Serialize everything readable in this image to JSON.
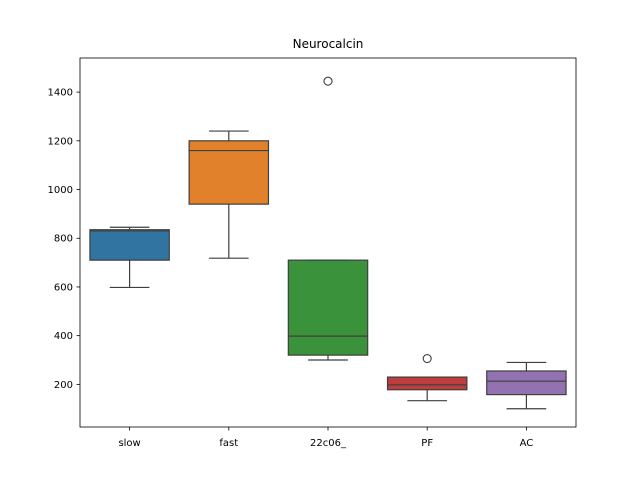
{
  "chart_data": {
    "type": "box",
    "title": "Neurocalcin",
    "xlabel": "",
    "ylabel": "",
    "ylim": [
      25,
      1540
    ],
    "yticks": [
      200,
      400,
      600,
      800,
      1000,
      1200,
      1400
    ],
    "grid": false,
    "categories": [
      "slow",
      "fast",
      "22c06_",
      "PF",
      "AC"
    ],
    "boxes": [
      {
        "label": "slow",
        "color": "#3274a1",
        "whisker_low": 598,
        "q1": 710,
        "median": 830,
        "q3": 835,
        "whisker_high": 845,
        "outliers": []
      },
      {
        "label": "fast",
        "color": "#e1812c",
        "whisker_low": 718,
        "q1": 940,
        "median": 1160,
        "q3": 1200,
        "whisker_high": 1240,
        "outliers": []
      },
      {
        "label": "22c06_",
        "color": "#3a923a",
        "whisker_low": 300,
        "q1": 320,
        "median": 398,
        "q3": 710,
        "whisker_high": 710,
        "outliers": [
          1445
        ]
      },
      {
        "label": "PF",
        "color": "#c03d3e",
        "whisker_low": 133,
        "q1": 178,
        "median": 198,
        "q3": 230,
        "whisker_high": 230,
        "outliers": [
          306
        ]
      },
      {
        "label": "AC",
        "color": "#9372b2",
        "whisker_low": 100,
        "q1": 158,
        "median": 213,
        "q3": 255,
        "whisker_high": 290,
        "outliers": []
      }
    ]
  }
}
